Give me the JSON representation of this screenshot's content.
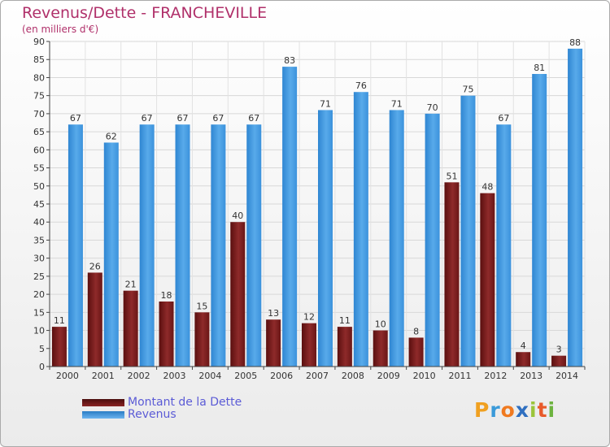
{
  "title": "Revenus/Dette - FRANCHEVILLE",
  "subtitle": "(en milliers d'€)",
  "chart_data": {
    "type": "bar",
    "title": "Revenus/Dette - FRANCHEVILLE",
    "subtitle": "(en milliers d'€)",
    "xlabel": "",
    "ylabel": "",
    "categories": [
      "2000",
      "2001",
      "2002",
      "2003",
      "2004",
      "2005",
      "2006",
      "2007",
      "2008",
      "2009",
      "2010",
      "2011",
      "2012",
      "2013",
      "2014"
    ],
    "series": [
      {
        "name": "Montant de la Dette",
        "color": "#7a1c1c",
        "values": [
          11,
          26,
          21,
          18,
          15,
          40,
          13,
          12,
          11,
          10,
          8,
          51,
          48,
          4,
          3
        ]
      },
      {
        "name": "Revenus",
        "color": "#3e96dd",
        "values": [
          67,
          62,
          67,
          67,
          67,
          67,
          83,
          71,
          76,
          71,
          70,
          75,
          67,
          81,
          88
        ]
      }
    ],
    "ylim": [
      0,
      90
    ],
    "yticks": [
      0,
      5,
      10,
      15,
      20,
      25,
      30,
      35,
      40,
      45,
      50,
      55,
      60,
      65,
      70,
      75,
      80,
      85,
      90
    ],
    "grid": true,
    "legend_position": "bottom-left"
  },
  "legend": {
    "items": [
      {
        "label": "Montant de la Dette",
        "color": "#6b1515"
      },
      {
        "label": "Revenus",
        "color": "#3e96dd"
      }
    ]
  },
  "logo": {
    "letters": [
      "P",
      "r",
      "o",
      "x",
      "i",
      "t",
      "i"
    ],
    "colors": [
      "#f0a020",
      "#3a9ad9",
      "#f07a20",
      "#2f6fc0",
      "#9bc43a",
      "#e85a2a",
      "#6db33f"
    ]
  }
}
